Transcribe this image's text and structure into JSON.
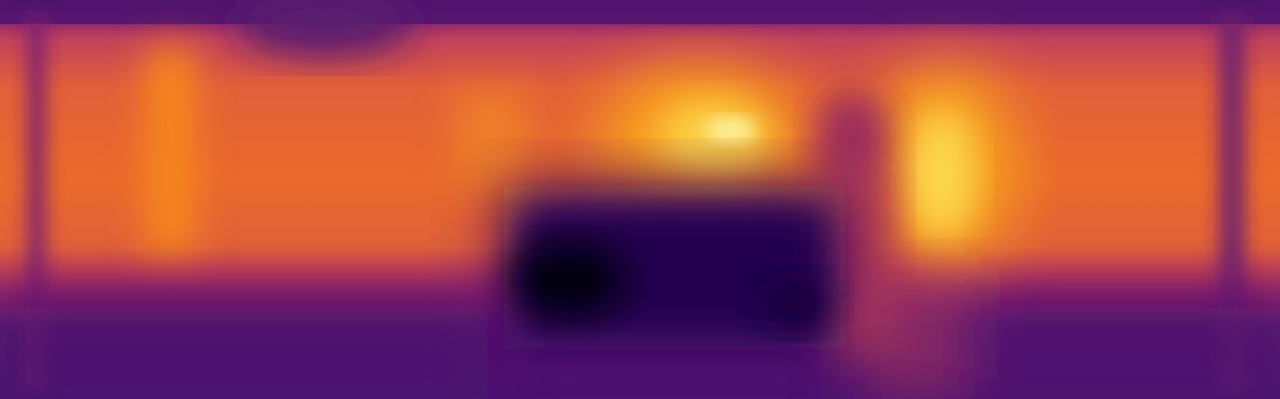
{
  "image": {
    "kind": "depth-heatmap",
    "colormap": "inferno",
    "palette": [
      "#000004",
      "#420a68",
      "#932667",
      "#dd513a",
      "#fca50a",
      "#fcffa4"
    ],
    "caption": ""
  }
}
